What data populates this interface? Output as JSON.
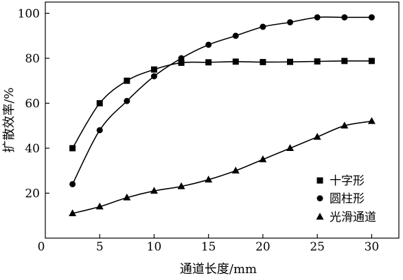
{
  "chart_data": {
    "type": "line",
    "xlabel": "通道长度/mm",
    "ylabel": "扩散效率/%",
    "xlim": [
      0,
      32.5
    ],
    "ylim": [
      0,
      105
    ],
    "xticks": [
      0,
      5,
      10,
      15,
      20,
      25,
      30
    ],
    "yticks": [
      20,
      40,
      60,
      80,
      100
    ],
    "grid": false,
    "legend_position": "bottom-right",
    "series": [
      {
        "name": "十字形",
        "marker": "square",
        "x": [
          2.5,
          5,
          7.5,
          10,
          12.5,
          15,
          17.5,
          20,
          22.5,
          25,
          27.5,
          30
        ],
        "y": [
          40,
          60,
          70,
          75,
          78,
          78.2,
          78.5,
          78.3,
          78.4,
          78.6,
          78.8,
          78.8
        ]
      },
      {
        "name": "圆柱形",
        "marker": "circle",
        "x": [
          2.5,
          5,
          7.5,
          10,
          12.5,
          15,
          17.5,
          20,
          22.5,
          25,
          27.5,
          30
        ],
        "y": [
          24,
          48,
          61,
          72,
          80,
          86,
          90,
          94,
          96,
          98.2,
          98.2,
          98.2
        ]
      },
      {
        "name": "光滑通道",
        "marker": "triangle",
        "x": [
          2.5,
          5,
          7.5,
          10,
          12.5,
          15,
          17.5,
          20,
          22.5,
          25,
          27.5,
          30
        ],
        "y": [
          11,
          14,
          18,
          21,
          23,
          26,
          30,
          35,
          40,
          45,
          50,
          52
        ]
      }
    ]
  }
}
